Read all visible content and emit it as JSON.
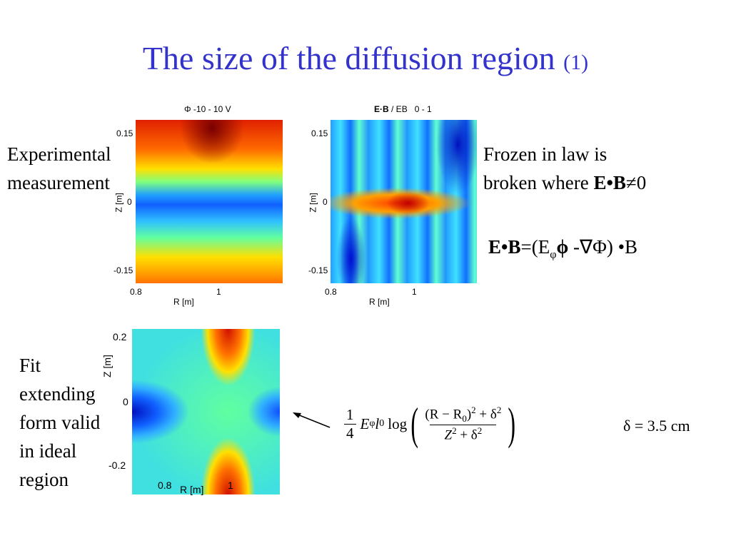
{
  "title": {
    "main": "The size of the diffusion region",
    "note": "(1)"
  },
  "panel1": {
    "title": "Φ  -10 - 10 V",
    "yticks": [
      "0.15",
      "0",
      "-0.15"
    ],
    "ylabel": "Z [m]",
    "xticks": [
      "0.8",
      "1"
    ],
    "xlabel": "R [m]"
  },
  "panel2": {
    "title_bold": "E·B",
    "title_rest": "/ EB",
    "title_range": "0 - 1",
    "yticks": [
      "0.15",
      "0",
      "-0.15"
    ],
    "ylabel": "Z [m]",
    "xticks": [
      "0.8",
      "1"
    ],
    "xlabel": "R [m]"
  },
  "panel3": {
    "yticks": [
      "0.2",
      "0",
      "-0.2"
    ],
    "ylabel": "Z [m]",
    "xticks": [
      "0.8",
      "1"
    ],
    "xlabel": "R [m]"
  },
  "labels": {
    "experimental": [
      "Experimental",
      "measurement"
    ],
    "fit": [
      "Fit",
      "extending",
      "form valid",
      "in ideal",
      "region"
    ]
  },
  "frozen": {
    "lines": [
      "Frozen in law is",
      "broken where "
    ],
    "bold": "E•B",
    "rest": "≠0"
  },
  "eb_eq": {
    "lhs": "E•B",
    "open": "=(E",
    "sub": "φ",
    "phi": "ϕ",
    "rest": " -∇Φ) •B"
  },
  "equation": {
    "num": "1",
    "den": "4",
    "E": "E",
    "Esub": "φ",
    "l": "l",
    "lsub": "0",
    "log": "log",
    "top1": "(R − R",
    "top1sub": "0",
    "top2": ")",
    "top2sup": "2",
    "top3": " + δ",
    "top3sup": "2",
    "bot1": "Z",
    "bot1sup": "2",
    "bot2": " + δ",
    "bot2sup": "2"
  },
  "delta": "δ = 3.5 cm"
}
